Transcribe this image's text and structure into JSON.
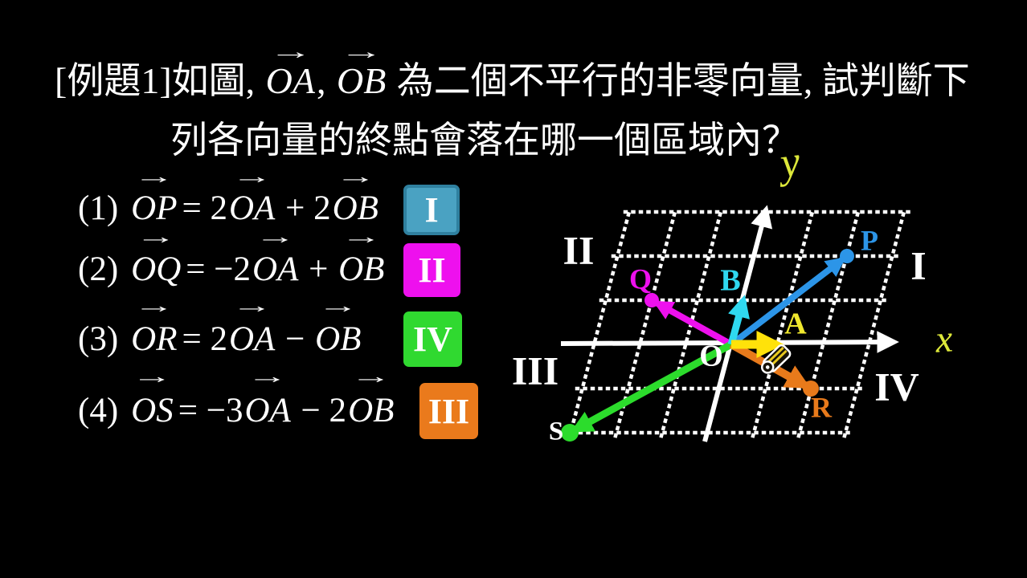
{
  "title": {
    "line1_prefix": "[例題1]如圖, ",
    "vec1": "OA",
    "separator": ", ",
    "vec2": "OB",
    "line1_suffix": " 為二個不平行的非零向量, 試判斷下",
    "line2": "列各向量的終點會落在哪一個區域內？"
  },
  "equations": [
    {
      "index": "(1)",
      "lhs": "OP",
      "rhs": [
        {
          "text": "= 2"
        },
        {
          "vec": "OA"
        },
        {
          "text": " + 2"
        },
        {
          "vec": "OB"
        }
      ],
      "answer": "I"
    },
    {
      "index": "(2)",
      "lhs": "OQ",
      "rhs": [
        {
          "text": "= −2"
        },
        {
          "vec": "OA"
        },
        {
          "text": " + "
        },
        {
          "vec": "OB"
        }
      ],
      "answer": "II"
    },
    {
      "index": "(3)",
      "lhs": "OR",
      "rhs": [
        {
          "text": "= 2"
        },
        {
          "vec": "OA"
        },
        {
          "text": " − "
        },
        {
          "vec": "OB"
        }
      ],
      "answer": "IV"
    },
    {
      "index": "(4)",
      "lhs": "OS",
      "rhs": [
        {
          "text": "= −3"
        },
        {
          "vec": "OA"
        },
        {
          "text": " − 2"
        },
        {
          "vec": "OB"
        }
      ],
      "answer": "III"
    }
  ],
  "badges": [
    {
      "label": "I",
      "bg": "#4aa2c2",
      "border": "#2f809f"
    },
    {
      "label": "II",
      "bg": "#ee10ee",
      "border": ""
    },
    {
      "label": "IV",
      "bg": "#30d930",
      "border": ""
    },
    {
      "label": "III",
      "bg": "#ea7a1c",
      "border": ""
    }
  ],
  "diagram": {
    "axis_labels": {
      "x": "x",
      "y": "y"
    },
    "axis_label_color": "#dde83a",
    "axis_color": "#ffffff",
    "grid_color": "#ffffff",
    "origin_label": "O",
    "region_labels": [
      "II",
      "I",
      "III",
      "IV"
    ],
    "points": [
      {
        "name": "A",
        "coeff": [
          1,
          0
        ],
        "color": "#ffe20a",
        "label_color": "#f0e82e",
        "dot": false
      },
      {
        "name": "B",
        "coeff": [
          0,
          1
        ],
        "color": "#2fd8f0",
        "label_color": "#2fd8f0",
        "dot": false
      },
      {
        "name": "P",
        "coeff": [
          2,
          2
        ],
        "color": "#2c95e8",
        "label_color": "#2c95e8",
        "dot": true
      },
      {
        "name": "Q",
        "coeff": [
          -2,
          1
        ],
        "color": "#ee10ee",
        "label_color": "#ee10ee",
        "dot": true
      },
      {
        "name": "R",
        "coeff": [
          2,
          -1
        ],
        "color": "#e87a1b",
        "label_color": "#e87a1b",
        "dot": true
      },
      {
        "name": "S",
        "coeff": [
          -3,
          -2
        ],
        "color": "#2cdc2c",
        "label_color": "#ffffff",
        "dot": true
      }
    ],
    "cursor_icon": "pencil-icon"
  }
}
